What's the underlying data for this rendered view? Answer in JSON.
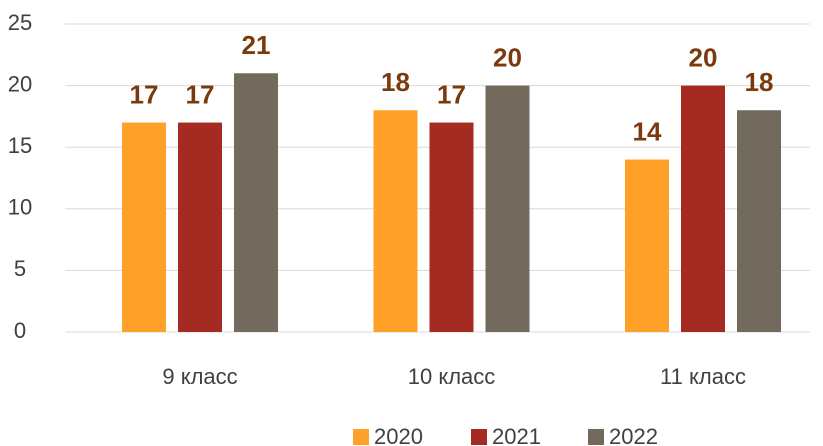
{
  "chart_data": {
    "type": "bar",
    "categories": [
      "9 класс",
      "10 класс",
      "11 класс"
    ],
    "series": [
      {
        "name": "2020",
        "color": "#FFA128",
        "values": [
          17,
          18,
          14
        ]
      },
      {
        "name": "2021",
        "color": "#A52A22",
        "values": [
          17,
          17,
          20
        ]
      },
      {
        "name": "2022",
        "color": "#726A5D",
        "values": [
          21,
          20,
          18
        ]
      }
    ],
    "ylim": [
      0,
      25
    ],
    "yticks": [
      0,
      5,
      10,
      15,
      20,
      25
    ],
    "grid": true,
    "legend": "bottom"
  }
}
